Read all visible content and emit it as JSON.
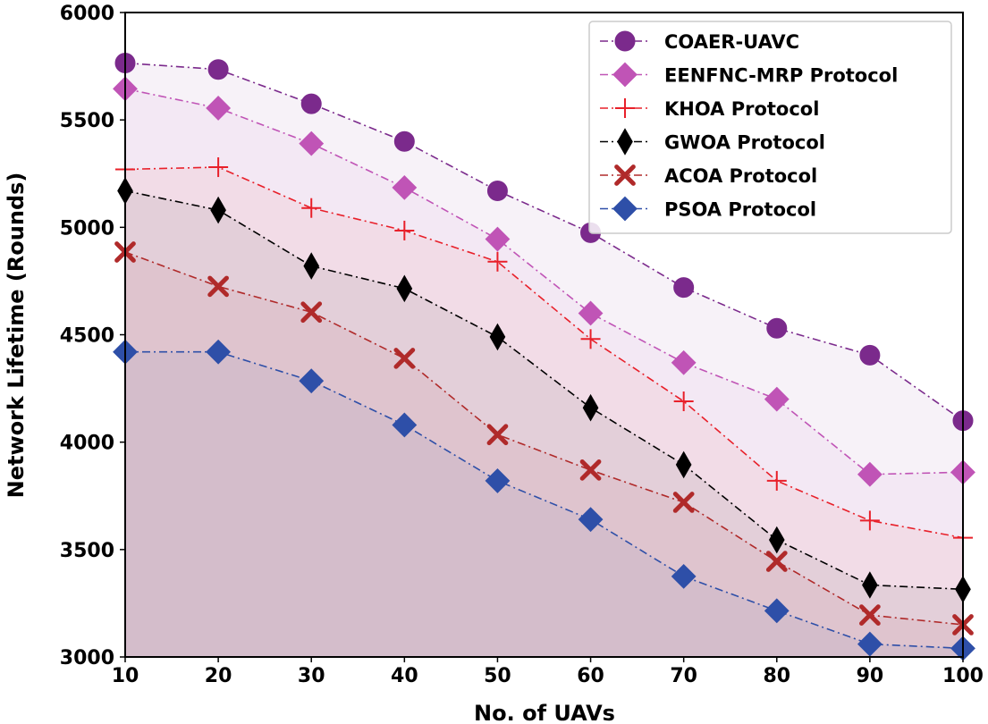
{
  "chart_data": {
    "type": "line",
    "title": "",
    "xlabel": "No. of UAVs",
    "ylabel": "Network Lifetime (Rounds)",
    "x": [
      10,
      20,
      30,
      40,
      50,
      60,
      70,
      80,
      90,
      100
    ],
    "xlim": [
      10,
      100
    ],
    "ylim": [
      3000,
      6000
    ],
    "xticks": [
      "10",
      "20",
      "30",
      "40",
      "50",
      "60",
      "70",
      "80",
      "90",
      "100"
    ],
    "yticks": [
      "3000",
      "3500",
      "4000",
      "4500",
      "5000",
      "5500",
      "6000"
    ],
    "grid": false,
    "legend_position": "top-right",
    "series": [
      {
        "name": "COAER-UAVC",
        "marker": "circle",
        "color": "#7b2a8c",
        "fill": "#e8eaf4",
        "values": [
          5765,
          5735,
          5575,
          5400,
          5170,
          4975,
          4720,
          4530,
          4405,
          4100
        ]
      },
      {
        "name": "EENFNC-MRP Protocol",
        "marker": "diamond",
        "color": "#c054b6",
        "fill": "#efe6ee",
        "values": [
          5645,
          5555,
          5390,
          5185,
          4945,
          4600,
          4370,
          4200,
          3850,
          3860
        ]
      },
      {
        "name": "KHOA Protocol",
        "marker": "plus",
        "color": "#e8202a",
        "fill": "#ede0e4",
        "values": [
          5270,
          5280,
          5090,
          4985,
          4840,
          4480,
          4190,
          3820,
          3635,
          3555
        ]
      },
      {
        "name": "GWOA Protocol",
        "marker": "thin-diamond",
        "color": "#000000",
        "fill": "#e8dcdf",
        "values": [
          5170,
          5080,
          4820,
          4715,
          4490,
          4160,
          3895,
          3545,
          3335,
          3315
        ]
      },
      {
        "name": "ACOA Protocol",
        "marker": "x",
        "color": "#b02a2a",
        "fill": "#e6d6d9",
        "values": [
          4885,
          4725,
          4605,
          4390,
          4035,
          3870,
          3720,
          3445,
          3195,
          3150
        ]
      },
      {
        "name": "PSOA Protocol",
        "marker": "diamond",
        "color": "#2e4fa8",
        "fill": "#e2d2d7",
        "values": [
          4420,
          4420,
          4285,
          4080,
          3820,
          3640,
          3375,
          3215,
          3060,
          3040
        ]
      }
    ]
  }
}
